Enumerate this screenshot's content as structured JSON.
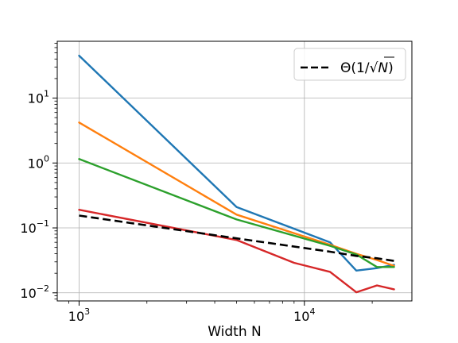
{
  "chart_data": {
    "type": "line",
    "xlabel": "Width N",
    "ylabel": "",
    "xscale": "log",
    "yscale": "log",
    "xlim": [
      800,
      30000
    ],
    "ylim": [
      0.0075,
      75
    ],
    "grid": true,
    "legend_position": "top-right",
    "x_tick_labels": [
      {
        "value": 1000,
        "base": "10",
        "exp": "3"
      },
      {
        "value": 10000,
        "base": "10",
        "exp": "4"
      }
    ],
    "y_tick_labels": [
      {
        "value": 0.01,
        "base": "10",
        "exp": "−2"
      },
      {
        "value": 0.1,
        "base": "10",
        "exp": "−1"
      },
      {
        "value": 1,
        "base": "10",
        "exp": "0"
      },
      {
        "value": 10,
        "base": "10",
        "exp": "1"
      }
    ],
    "series": [
      {
        "color": "#1f77b4",
        "style": "solid",
        "x": [
          1000,
          5000,
          13000,
          17000,
          21000,
          25000
        ],
        "y": [
          45,
          0.21,
          0.06,
          0.022,
          0.024,
          0.027
        ]
      },
      {
        "color": "#ff7f0e",
        "style": "solid",
        "x": [
          1000,
          5000,
          13000,
          17000,
          21000,
          25000
        ],
        "y": [
          4.2,
          0.16,
          0.055,
          0.04,
          0.032,
          0.026
        ]
      },
      {
        "color": "#2ca02c",
        "style": "solid",
        "x": [
          1000,
          5000,
          13000,
          17000,
          21000,
          25000
        ],
        "y": [
          1.15,
          0.135,
          0.053,
          0.039,
          0.025,
          0.025
        ]
      },
      {
        "color": "#d62728",
        "style": "solid",
        "x": [
          1000,
          5000,
          9000,
          13000,
          17000,
          21000,
          25000
        ],
        "y": [
          0.19,
          0.065,
          0.029,
          0.021,
          0.0102,
          0.013,
          0.0113
        ]
      },
      {
        "name": "Θ(1/√N)",
        "color": "#000000",
        "style": "dashed",
        "x": [
          1000,
          5000,
          13000,
          17000,
          21000,
          25000
        ],
        "y": [
          0.155,
          0.069,
          0.043,
          0.037,
          0.034,
          0.031
        ]
      }
    ],
    "legend": {
      "entries": [
        {
          "label_prefix": "Θ(1/",
          "label_sqrt": "N",
          "label_suffix": ")",
          "color": "#000000",
          "style": "dashed"
        }
      ]
    }
  }
}
